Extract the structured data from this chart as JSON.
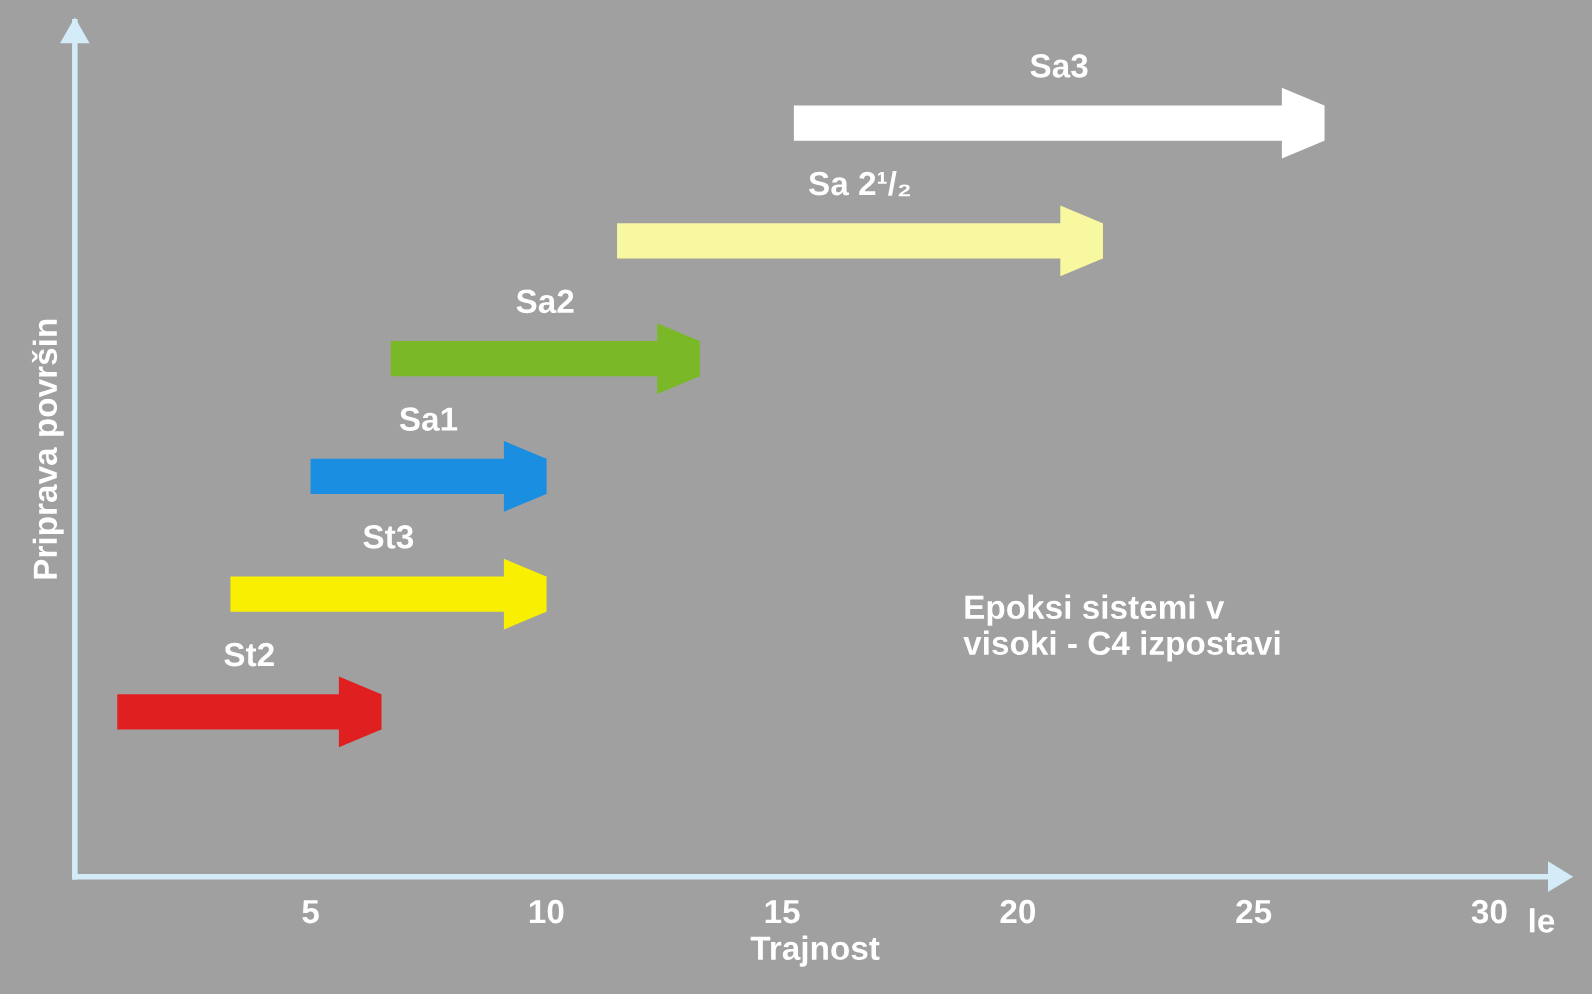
{
  "chart_data": {
    "type": "bar",
    "orientation": "horizontal",
    "categories": [
      "Sa3",
      "Sa 2¹/₂",
      "Sa2",
      "Sa1",
      "St3",
      "St2"
    ],
    "base": [
      15.25,
      11.5,
      6.7,
      5.0,
      3.3,
      0.9
    ],
    "values": [
      11.25,
      10.3,
      6.55,
      5.0,
      6.7,
      5.6
    ],
    "colors": [
      "#ffffff",
      "#f8f8a0",
      "#7ab828",
      "#1a8ee0",
      "#f8f000",
      "#e02020"
    ],
    "xlim": [
      0,
      31.4
    ],
    "xticks": [
      5,
      10,
      15,
      20,
      25,
      30
    ],
    "xlabel": "Trajnost",
    "ylabel": "Priprava površin",
    "tick_labels": "x",
    "grid": false,
    "legend": false,
    "annotations": [
      "Epoksi sistemi v\nvisoki - C4 izpostavi",
      "le"
    ]
  }
}
